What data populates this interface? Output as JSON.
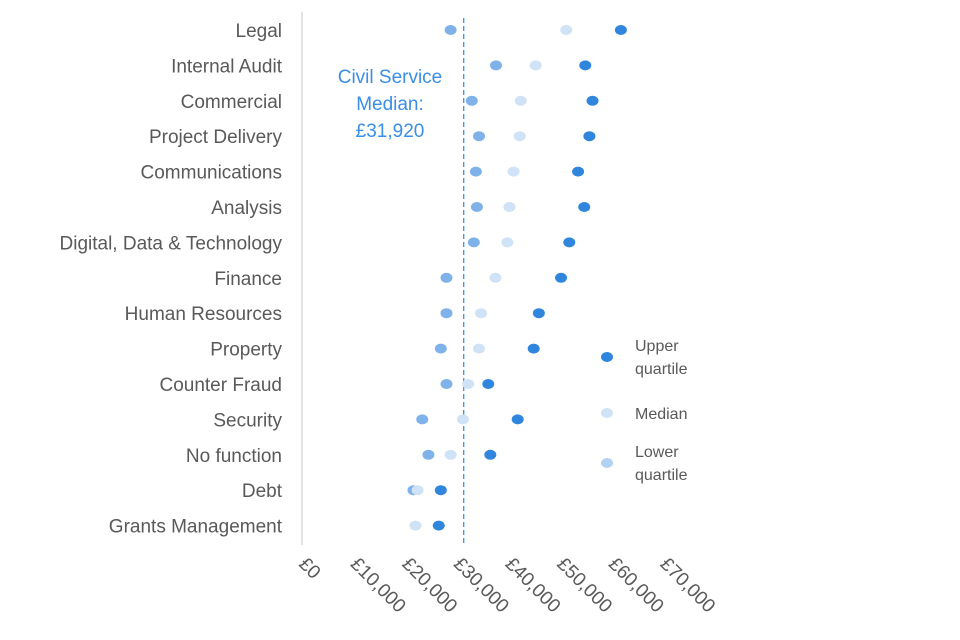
{
  "chart_data": {
    "type": "scatter",
    "title": "",
    "xlabel": "",
    "ylabel": "",
    "xlim": [
      0,
      70000
    ],
    "xticks": [
      0,
      10000,
      20000,
      30000,
      40000,
      50000,
      60000,
      70000
    ],
    "xtick_labels": [
      "£0",
      "£10,000",
      "£20,000",
      "£30,000",
      "£40,000",
      "£50,000",
      "£60,000",
      "£70,000"
    ],
    "grid": false,
    "legend_position": "right",
    "categories": [
      "Legal",
      "Internal Audit",
      "Commercial",
      "Project Delivery",
      "Communications",
      "Analysis",
      "Digital, Data & Technology",
      "Finance",
      "Human Resources",
      "Property",
      "Counter Fraud",
      "Security",
      "No function",
      "Debt",
      "Grants Management"
    ],
    "series": [
      {
        "name": "Upper quartile",
        "color": "#2f86dc",
        "values": [
          61800,
          54900,
          56300,
          55700,
          53500,
          54700,
          51800,
          50200,
          45900,
          44900,
          36100,
          41800,
          36500,
          26900,
          26500
        ]
      },
      {
        "name": "Median",
        "color": "#cfe2f6",
        "values": [
          51200,
          45300,
          42400,
          42200,
          41000,
          40200,
          39800,
          37500,
          34700,
          34300,
          32200,
          31200,
          28800,
          22400,
          22000
        ]
      },
      {
        "name": "Lower quartile",
        "color": "#7fb2e9",
        "values": [
          28800,
          37600,
          32900,
          34300,
          33700,
          33900,
          33300,
          28000,
          28000,
          26900,
          28000,
          23300,
          24500,
          21600,
          null
        ]
      }
    ],
    "legend_entries": [
      {
        "lines": [
          "Upper",
          "quartile"
        ],
        "color": "#2f86dc"
      },
      {
        "lines": [
          "Median"
        ],
        "color": "#cfe2f6"
      },
      {
        "lines": [
          "Lower",
          "quartile"
        ],
        "color": "#b3d1f2"
      }
    ],
    "reference_line": {
      "value": 31920,
      "color": "#3a8ee6",
      "label_lines": [
        "Civil Service",
        "Median:",
        "£31,920"
      ]
    }
  }
}
